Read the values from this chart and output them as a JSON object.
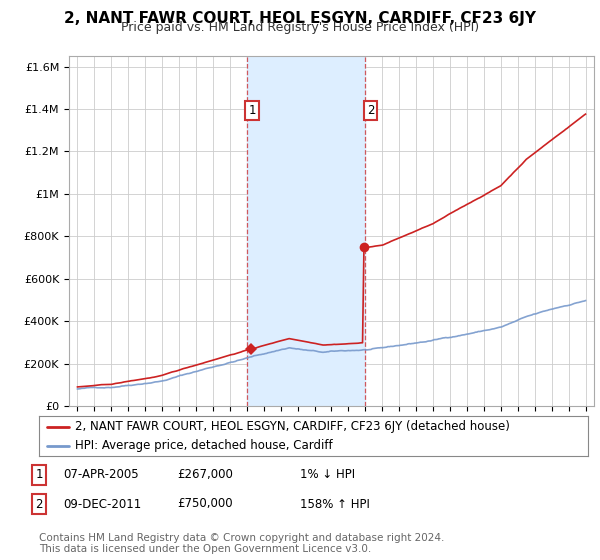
{
  "title": "2, NANT FAWR COURT, HEOL ESGYN, CARDIFF, CF23 6JY",
  "subtitle": "Price paid vs. HM Land Registry's House Price Index (HPI)",
  "ylabel_ticks": [
    0,
    200000,
    400000,
    600000,
    800000,
    1000000,
    1200000,
    1400000,
    1600000
  ],
  "ylabel_labels": [
    "£0",
    "£200K",
    "£400K",
    "£600K",
    "£800K",
    "£1M",
    "£1.2M",
    "£1.4M",
    "£1.6M"
  ],
  "ylim": [
    0,
    1650000
  ],
  "xlim_start": 1994.5,
  "xlim_end": 2025.5,
  "sale1_x": 2005.27,
  "sale1_y": 267000,
  "sale2_x": 2011.92,
  "sale2_y": 750000,
  "shade_x_start": 2005.0,
  "shade_x_end": 2012.0,
  "dashed1_x": 2005.0,
  "dashed2_x": 2012.0,
  "property_line_color": "#cc2222",
  "hpi_line_color": "#7799cc",
  "shade_color": "#ddeeff",
  "marker_color": "#cc2222",
  "legend_property_label": "2, NANT FAWR COURT, HEOL ESGYN, CARDIFF, CF23 6JY (detached house)",
  "legend_hpi_label": "HPI: Average price, detached house, Cardiff",
  "sale_table": [
    {
      "num": "1",
      "date": "07-APR-2005",
      "price": "£267,000",
      "hpi": "1% ↓ HPI"
    },
    {
      "num": "2",
      "date": "09-DEC-2011",
      "price": "£750,000",
      "hpi": "158% ↑ HPI"
    }
  ],
  "footer": "Contains HM Land Registry data © Crown copyright and database right 2024.\nThis data is licensed under the Open Government Licence v3.0.",
  "background_color": "#ffffff",
  "plot_bg_color": "#ffffff",
  "grid_color": "#cccccc",
  "title_fontsize": 11,
  "subtitle_fontsize": 9,
  "tick_fontsize": 8,
  "legend_fontsize": 8.5,
  "footer_fontsize": 7.5
}
